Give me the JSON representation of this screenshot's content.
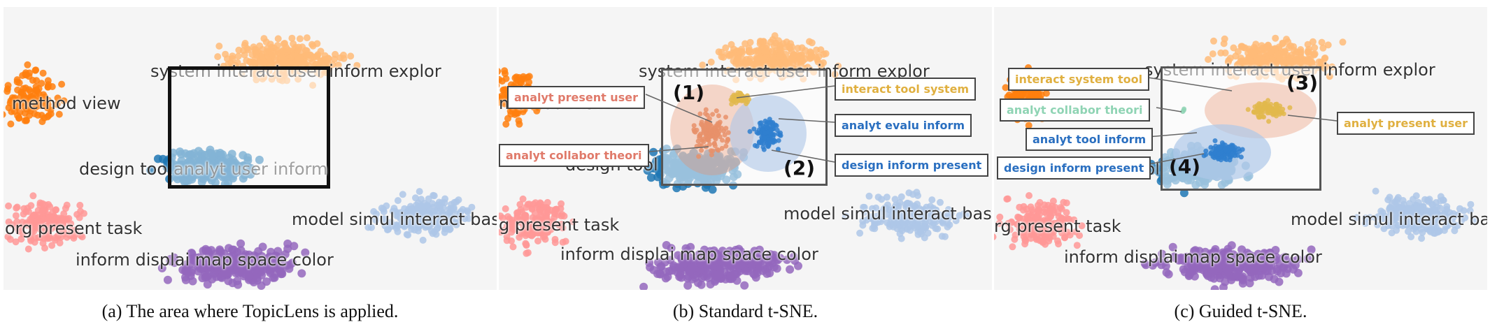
{
  "colors": {
    "orange": "#ff7f0e",
    "light_orange": "#ffbb78",
    "blue": "#1f77b4",
    "light_blue": "#aec7e8",
    "pink": "#ff9896",
    "purple": "#9467bd",
    "cluster_salmon": "#e8906a",
    "cluster_gold": "#e2b84c",
    "cluster_mid_blue": "#2f7fcf",
    "callout_salmon": "#e07a6a",
    "callout_gold": "#e0b040",
    "callout_blue": "#2a6fc0",
    "callout_mint": "#8fd4b4"
  },
  "panels": [
    {
      "caption": "(a) The area where TopicLens is applied.",
      "topics": {
        "method": "method view",
        "system": "system interact user inform explor",
        "design": "design tool",
        "analyt": "analyt user inform",
        "model": "model simul interact base",
        "org": "org present task",
        "inform": "inform displai map space color"
      }
    },
    {
      "caption": "(b) Standard t-SNE.",
      "topics": {
        "method": "method view",
        "system": "system interact user inform explor",
        "design": "design tool",
        "model": "model simul interact base",
        "org": "g present task",
        "inform": "inform displai map space color"
      },
      "callouts": {
        "c1": "analyt present user",
        "c2": "analyt collabor theori",
        "c3": "interact tool system",
        "c4": "analyt evalu inform",
        "c5": "design inform present"
      },
      "numbers": {
        "n1": "(1)",
        "n2": "(2)"
      }
    },
    {
      "caption": "(c) Guided t-SNE.",
      "topics": {
        "system": "system interact user inform explor",
        "design": "pl",
        "model": "model simul interact base",
        "org": "rg present task",
        "inform": "inform displai map space color"
      },
      "callouts": {
        "c1": "interact system tool",
        "c2": "analyt collabor theori",
        "c3": "analyt tool inform",
        "c4": "design inform present",
        "c5": "analyt present user"
      },
      "numbers": {
        "n3": "(3)",
        "n4": "(4)"
      }
    }
  ]
}
